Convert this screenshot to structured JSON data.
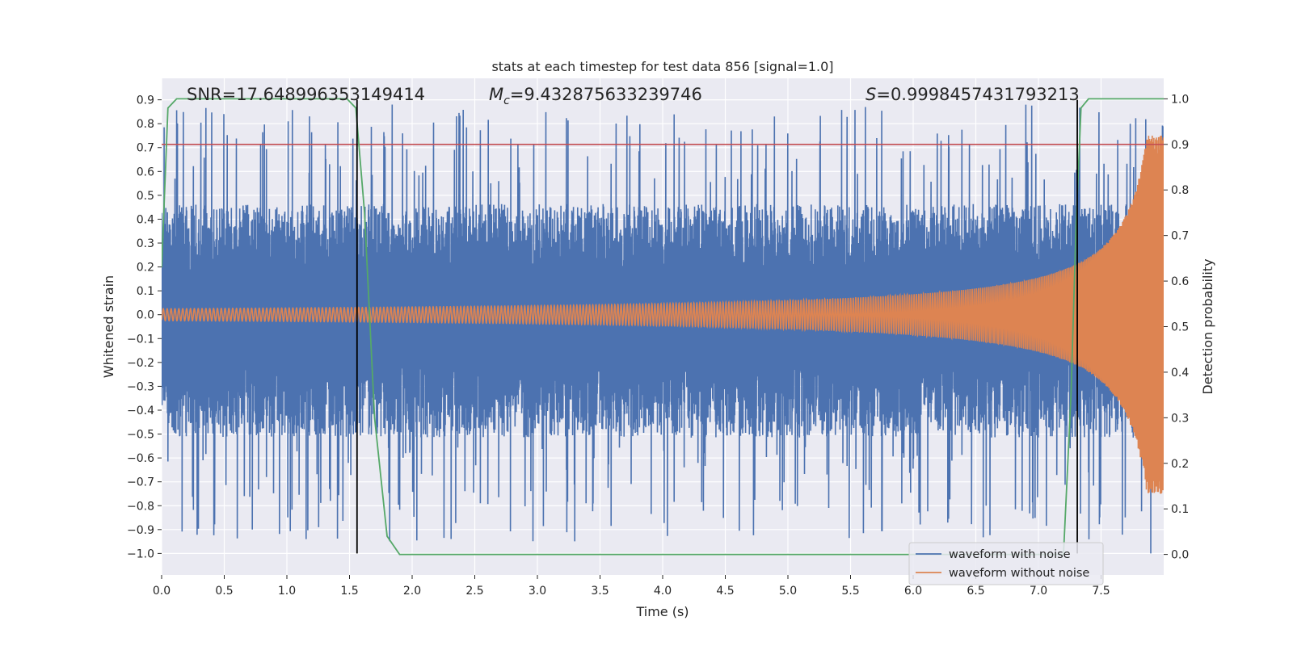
{
  "chart_data": {
    "type": "line",
    "title": "stats at each timestep for test data 856 [signal=1.0]",
    "xlabel": "Time (s)",
    "ylabel": "Whitened strain",
    "y2label": "Detection probability",
    "xlim": [
      0.0,
      8.0
    ],
    "ylim": [
      -1.09,
      0.99
    ],
    "y2lim": [
      -0.045,
      1.045
    ],
    "x_ticks": [
      0.0,
      0.5,
      1.0,
      1.5,
      2.0,
      2.5,
      3.0,
      3.5,
      4.0,
      4.5,
      5.0,
      5.5,
      6.0,
      6.5,
      7.0,
      7.5
    ],
    "x_tick_labels": [
      "0.0",
      "0.5",
      "1.0",
      "1.5",
      "2.0",
      "2.5",
      "3.0",
      "3.5",
      "4.0",
      "4.5",
      "5.0",
      "5.5",
      "6.0",
      "6.5",
      "7.0",
      "7.5"
    ],
    "y_ticks": [
      -1.0,
      -0.9,
      -0.8,
      -0.7,
      -0.6,
      -0.5,
      -0.4,
      -0.3,
      -0.2,
      -0.1,
      0.0,
      0.1,
      0.2,
      0.3,
      0.4,
      0.5,
      0.6,
      0.7,
      0.8,
      0.9
    ],
    "y_tick_labels": [
      "−1.0",
      "−0.9",
      "−0.8",
      "−0.7",
      "−0.6",
      "−0.5",
      "−0.4",
      "−0.3",
      "−0.2",
      "−0.1",
      "0.0",
      "0.1",
      "0.2",
      "0.3",
      "0.4",
      "0.5",
      "0.6",
      "0.7",
      "0.8",
      "0.9"
    ],
    "y2_ticks": [
      0.0,
      0.1,
      0.2,
      0.3,
      0.4,
      0.5,
      0.6,
      0.7,
      0.8,
      0.9,
      1.0
    ],
    "y2_tick_labels": [
      "0.0",
      "0.1",
      "0.2",
      "0.3",
      "0.4",
      "0.5",
      "0.6",
      "0.7",
      "0.8",
      "0.9",
      "1.0"
    ],
    "grid": true,
    "legend_position": "bottom-right",
    "annotations": {
      "snr": "SNR=17.648996353149414",
      "mc_symbol": "M",
      "mc_sub": "c",
      "mc_value": "=9.432875633239746",
      "s_symbol": "S",
      "s_value": "=0.9998457431793213"
    },
    "colors": {
      "noise": "#4c72b0",
      "clean": "#dd8452",
      "probability": "#55a868",
      "threshold": "#c44e52",
      "markers": "#000000",
      "background": "#eaeaf2",
      "grid": "#ffffff"
    },
    "series": [
      {
        "name": "waveform with noise",
        "axis": "left",
        "envelope_upper_typical": 0.45,
        "envelope_lower_typical": -0.5,
        "max_peak": 0.88,
        "min_peak": -1.0
      },
      {
        "name": "waveform without noise",
        "axis": "left",
        "amplitude_start": 0.025,
        "amplitude_end": 0.75
      },
      {
        "axis": "right",
        "x": [
          0.0,
          0.05,
          0.12,
          1.48,
          1.55,
          1.62,
          1.7,
          1.8,
          1.9,
          2.0,
          7.2,
          7.26,
          7.3,
          7.34,
          7.4,
          8.0
        ],
        "y": [
          0.63,
          0.98,
          1.0,
          1.0,
          0.98,
          0.75,
          0.3,
          0.04,
          0.0,
          0.0,
          0.0,
          0.35,
          0.72,
          0.98,
          1.0,
          1.0
        ]
      }
    ],
    "threshold": {
      "axis": "right",
      "y": 0.9
    },
    "vertical_markers": [
      {
        "x": 1.56,
        "ymin": -1.0,
        "ymax": 0.9
      },
      {
        "x": 7.31,
        "ymin": -1.0,
        "ymax": 0.9
      }
    ],
    "legend": [
      {
        "label": "waveform with noise",
        "series": 0
      },
      {
        "label": "waveform without noise",
        "series": 1
      }
    ]
  }
}
